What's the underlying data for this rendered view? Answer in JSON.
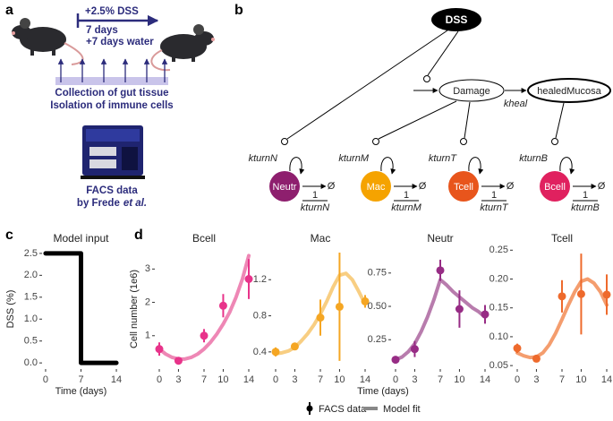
{
  "panel_labels": [
    "a",
    "b",
    "c",
    "d"
  ],
  "panel_a": {
    "treatment": "+2.5% DSS",
    "duration": "7 days",
    "recovery": "+7 days water",
    "collection": "Collection of gut tissue",
    "isolation": "Isolation of immune cells",
    "facs": "FACS data",
    "facs_by": "by Frede",
    "facs_etal": "et al."
  },
  "panel_b": {
    "input": "DSS",
    "damage": "Damage",
    "healed": "healedMucosa",
    "kheal": "kheal",
    "sink": "Ø",
    "numerator": "1",
    "cells": [
      {
        "label": "Neutr",
        "rate": "kturnN",
        "color": "#8e1f6e"
      },
      {
        "label": "Mac",
        "rate": "kturnM",
        "color": "#f5a300"
      },
      {
        "label": "Tcell",
        "rate": "kturnT",
        "color": "#e8551c"
      },
      {
        "label": "Bcell",
        "rate": "kturnB",
        "color": "#e0215f"
      }
    ]
  },
  "panel_d": {
    "xlabel": "Time (days)",
    "ylabel": "Cell number (1e6)",
    "legend": [
      "FACS data",
      "Model fit"
    ]
  },
  "chart_data": [
    {
      "type": "line",
      "title": "Model input",
      "xlabel": "Time (days)",
      "ylabel": "DSS (%)",
      "xlim": [
        -0.7,
        14.7
      ],
      "xticks": [
        0,
        7,
        14
      ],
      "ylim": [
        -0.14,
        2.6
      ],
      "yticks": [
        {
          "value": 0,
          "label": "0.0"
        },
        {
          "value": 0.5,
          "label": "0.5"
        },
        {
          "value": 1,
          "label": "1.0"
        },
        {
          "value": 1.5,
          "label": "1.5"
        },
        {
          "value": 2,
          "label": "2.0"
        },
        {
          "value": 2.5,
          "label": "2.5"
        }
      ],
      "series": [
        {
          "color": "#000000",
          "x": [
            0,
            7,
            7,
            14
          ],
          "values": [
            2.5,
            2.5,
            0,
            0
          ]
        }
      ]
    },
    {
      "type": "line",
      "title": "Bcell",
      "xlim": [
        -0.7,
        14.7
      ],
      "xticks": [
        0,
        3,
        7,
        10,
        14
      ],
      "ylim": [
        0,
        3.6
      ],
      "yticks": [
        1,
        2,
        3
      ],
      "series": [
        {
          "color": "#e8338a",
          "x": [
            0,
            3,
            7,
            10,
            14
          ],
          "values": [
            0.6,
            0.25,
            1.0,
            1.9,
            2.7
          ],
          "errors": [
            0.2,
            0.05,
            0.2,
            0.35,
            0.6
          ]
        },
        {
          "color": "#eb72a8",
          "x": [
            0,
            1,
            2,
            3,
            4,
            5,
            6,
            7,
            8,
            9,
            10,
            11,
            12,
            13,
            14
          ],
          "values": [
            0.6,
            0.45,
            0.35,
            0.3,
            0.3,
            0.35,
            0.45,
            0.6,
            0.8,
            1.05,
            1.35,
            1.7,
            2.15,
            2.7,
            3.4
          ]
        }
      ]
    },
    {
      "type": "line",
      "title": "Mac",
      "xlim": [
        -0.7,
        14.7
      ],
      "xticks": [
        0,
        3,
        7,
        10,
        14
      ],
      "ylim": [
        0.21,
        1.54
      ],
      "yticks": [
        0.4,
        0.8,
        1.2
      ],
      "series": [
        {
          "color": "#f5a623",
          "x": [
            0,
            3,
            7,
            10,
            14
          ],
          "values": [
            0.4,
            0.46,
            0.78,
            0.9,
            0.96
          ],
          "errors": [
            0.05,
            0.03,
            0.2,
            0.6,
            0.07
          ]
        },
        {
          "color": "#f7c56c",
          "x": [
            0,
            1,
            2,
            3,
            4,
            5,
            6,
            7,
            8,
            9,
            10,
            11,
            12,
            13,
            14
          ],
          "values": [
            0.38,
            0.39,
            0.41,
            0.45,
            0.52,
            0.6,
            0.7,
            0.82,
            0.96,
            1.12,
            1.25,
            1.27,
            1.2,
            1.07,
            0.93
          ]
        }
      ]
    },
    {
      "type": "line",
      "title": "Neutr",
      "xlim": [
        -0.7,
        14.7
      ],
      "xticks": [
        0,
        3,
        7,
        10,
        14
      ],
      "ylim": [
        0.03,
        0.93
      ],
      "yticks": [
        0.25,
        {
          "value": 0.5,
          "label": "0.50"
        },
        0.75
      ],
      "series": [
        {
          "color": "#972c85",
          "x": [
            0,
            3,
            7,
            10,
            14
          ],
          "values": [
            0.1,
            0.18,
            0.77,
            0.48,
            0.44
          ],
          "errors": [
            0.02,
            0.06,
            0.08,
            0.14,
            0.07
          ]
        },
        {
          "color": "#ac659f",
          "x": [
            0,
            1,
            2,
            3,
            4,
            5,
            6,
            7,
            8,
            9,
            10,
            11,
            12,
            13,
            14
          ],
          "values": [
            0.1,
            0.12,
            0.16,
            0.22,
            0.31,
            0.42,
            0.55,
            0.7,
            0.66,
            0.61,
            0.57,
            0.53,
            0.49,
            0.46,
            0.42
          ]
        }
      ]
    },
    {
      "type": "line",
      "title": "Tcell",
      "xlim": [
        -0.7,
        14.7
      ],
      "xticks": [
        0,
        3,
        7,
        10,
        14
      ],
      "ylim": [
        0.044,
        0.252
      ],
      "yticks": [
        0.05,
        {
          "value": 0.1,
          "label": "0.10"
        },
        0.15,
        {
          "value": 0.2,
          "label": "0.20"
        },
        0.25
      ],
      "series": [
        {
          "color": "#ee6a2c",
          "x": [
            0,
            3,
            7,
            10,
            14
          ],
          "values": [
            0.08,
            0.062,
            0.17,
            0.174,
            0.173
          ],
          "errors": [
            0.008,
            0.004,
            0.028,
            0.07,
            0.035
          ]
        },
        {
          "color": "#f28c55",
          "x": [
            0,
            1,
            2,
            3,
            4,
            5,
            6,
            7,
            8,
            9,
            10,
            11,
            12,
            13,
            14
          ],
          "values": [
            0.072,
            0.067,
            0.064,
            0.065,
            0.072,
            0.086,
            0.106,
            0.13,
            0.155,
            0.178,
            0.196,
            0.2,
            0.193,
            0.178,
            0.155
          ]
        }
      ]
    }
  ]
}
